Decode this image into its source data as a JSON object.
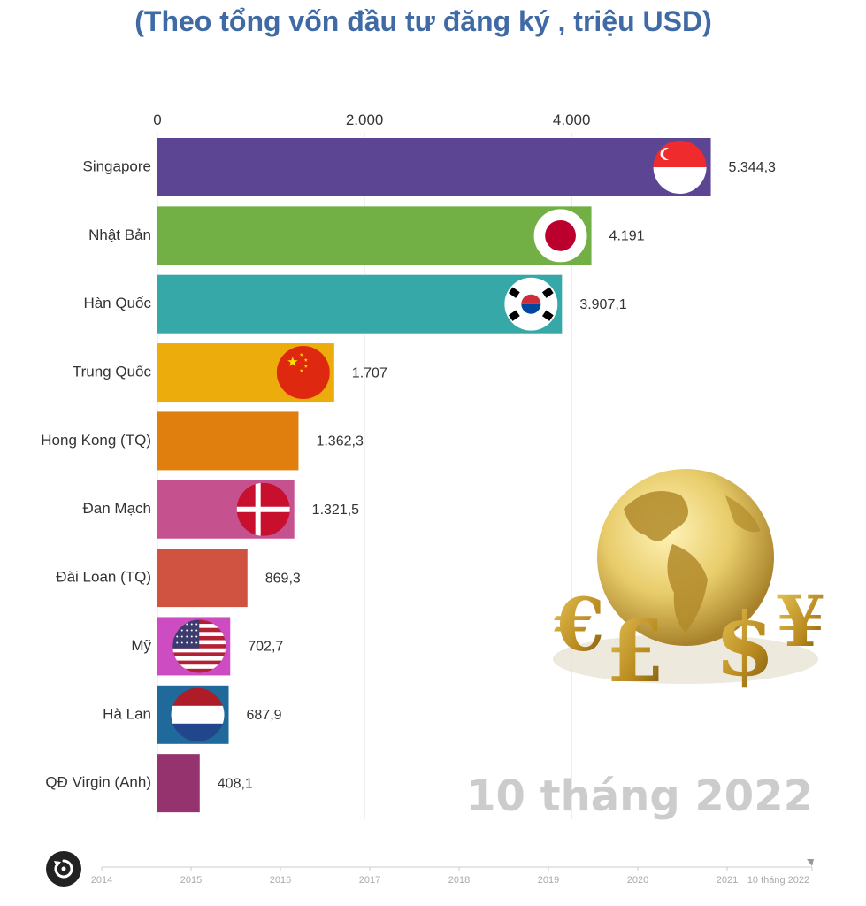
{
  "chart_data": {
    "type": "bar",
    "orientation": "horizontal",
    "title": "(Theo tổng vốn đầu tư đăng ký , triệu USD)",
    "categories": [
      "Singapore",
      "Nhật Bản",
      "Hàn Quốc",
      "Trung Quốc",
      "Hong Kong (TQ)",
      "Đan Mạch",
      "Đài Loan (TQ)",
      "Mỹ",
      "Hà Lan",
      "QĐ Virgin (Anh)"
    ],
    "values": [
      5344.3,
      4191,
      3907.1,
      1707,
      1362.3,
      1321.5,
      869.3,
      702.7,
      687.9,
      408.1
    ],
    "value_labels": [
      "5.344,3",
      "4.191",
      "3.907,1",
      "1.707",
      "1.362,3",
      "1.321,5",
      "869,3",
      "702,7",
      "687,9",
      "408,1"
    ],
    "colors": [
      "#5c4593",
      "#72b046",
      "#36a8a8",
      "#ecac0c",
      "#e07f0d",
      "#c5518e",
      "#d05241",
      "#ce4cc1",
      "#1f6a9a",
      "#94336e"
    ],
    "flags": [
      "singapore-flag",
      "japan-flag",
      "south-korea-flag",
      "china-flag",
      null,
      "denmark-flag",
      null,
      "usa-flag",
      "netherlands-flag",
      null
    ],
    "xlim": [
      0,
      5500
    ],
    "xticks": [
      0,
      2000,
      4000
    ],
    "xtick_labels": [
      "0",
      "2.000",
      "4.000"
    ],
    "grid": true
  },
  "period_label": "10 tháng 2022",
  "timeline": {
    "labels": [
      "2014",
      "2015",
      "2016",
      "2017",
      "2018",
      "2019",
      "2020",
      "2021",
      "10 tháng 2022"
    ],
    "current": "10 tháng 2022"
  },
  "icons": {
    "replay": "replay-icon",
    "illustration": "gold-globe-currency-illustration"
  }
}
